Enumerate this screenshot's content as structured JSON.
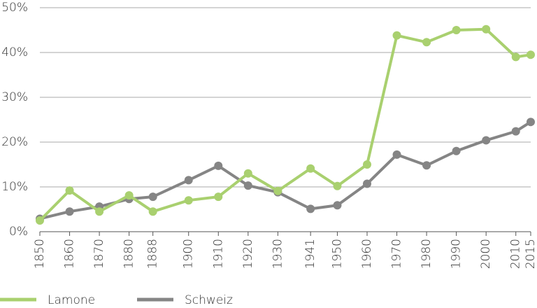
{
  "chart_data": {
    "type": "line",
    "x": [
      1850,
      1860,
      1870,
      1880,
      1888,
      1900,
      1910,
      1920,
      1930,
      1941,
      1950,
      1960,
      1970,
      1980,
      1990,
      2000,
      2010,
      2015
    ],
    "series": [
      {
        "name": "Lamone",
        "color": "#a9d06f",
        "values": [
          2.5,
          9.2,
          4.5,
          8.1,
          4.5,
          7.0,
          7.8,
          13.0,
          9.1,
          14.1,
          10.2,
          15.0,
          43.8,
          42.3,
          45.0,
          45.2,
          39.0,
          39.5
        ]
      },
      {
        "name": "Schweiz",
        "color": "#858585",
        "values": [
          2.9,
          4.5,
          5.6,
          7.3,
          7.8,
          11.5,
          14.7,
          10.3,
          8.8,
          5.1,
          5.9,
          10.7,
          17.2,
          14.8,
          18.0,
          20.4,
          22.4,
          24.5
        ]
      }
    ],
    "xlim": [
      1850,
      2015
    ],
    "xticks": [
      1850,
      1860,
      1870,
      1880,
      1888,
      1900,
      1910,
      1920,
      1930,
      1941,
      1950,
      1960,
      1970,
      1980,
      1990,
      2000,
      2010,
      2015
    ],
    "ylim": [
      0,
      50
    ],
    "yticks": [
      {
        "value": 0,
        "label": "0%"
      },
      {
        "value": 10,
        "label": "10%"
      },
      {
        "value": 20,
        "label": "20%"
      },
      {
        "value": 30,
        "label": "30%"
      },
      {
        "value": 40,
        "label": "40%"
      },
      {
        "value": 50,
        "label": "50%"
      }
    ],
    "grid": true,
    "legend": "bottom"
  }
}
